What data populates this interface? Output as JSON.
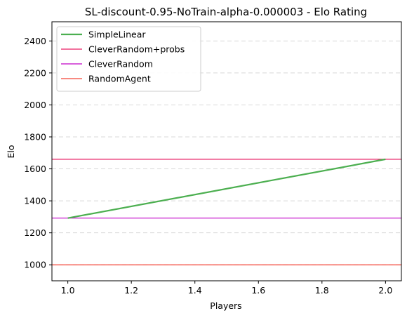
{
  "chart_data": {
    "type": "line",
    "title": "SL-discount-0.95-NoTrain-alpha-0.000003 - Elo Rating",
    "xlabel": "Players",
    "ylabel": "Elo",
    "xlim": [
      0.95,
      2.05
    ],
    "ylim": [
      900,
      2520
    ],
    "x_ticks": [
      1.0,
      1.2,
      1.4,
      1.6,
      1.8,
      2.0
    ],
    "x_tick_labels": [
      "1.0",
      "1.2",
      "1.4",
      "1.6",
      "1.8",
      "2.0"
    ],
    "y_ticks": [
      1000,
      1200,
      1400,
      1600,
      1800,
      2000,
      2200,
      2400
    ],
    "y_tick_labels": [
      "1000",
      "1200",
      "1400",
      "1600",
      "1800",
      "2000",
      "2200",
      "2400"
    ],
    "grid": "horizontal-dashed",
    "legend_position": "top-left",
    "series": [
      {
        "name": "SimpleLinear",
        "kind": "line",
        "color": "#4caf50",
        "x": [
          1.0,
          2.0
        ],
        "y": [
          1292,
          1660
        ]
      }
    ],
    "reference_lines": [
      {
        "name": "CleverRandom+probs",
        "color": "#e91e63",
        "y": 1660
      },
      {
        "name": "CleverRandom",
        "color": "#c000c8",
        "y": 1292
      },
      {
        "name": "RandomAgent",
        "color": "#f44336",
        "y": 1000
      }
    ]
  }
}
